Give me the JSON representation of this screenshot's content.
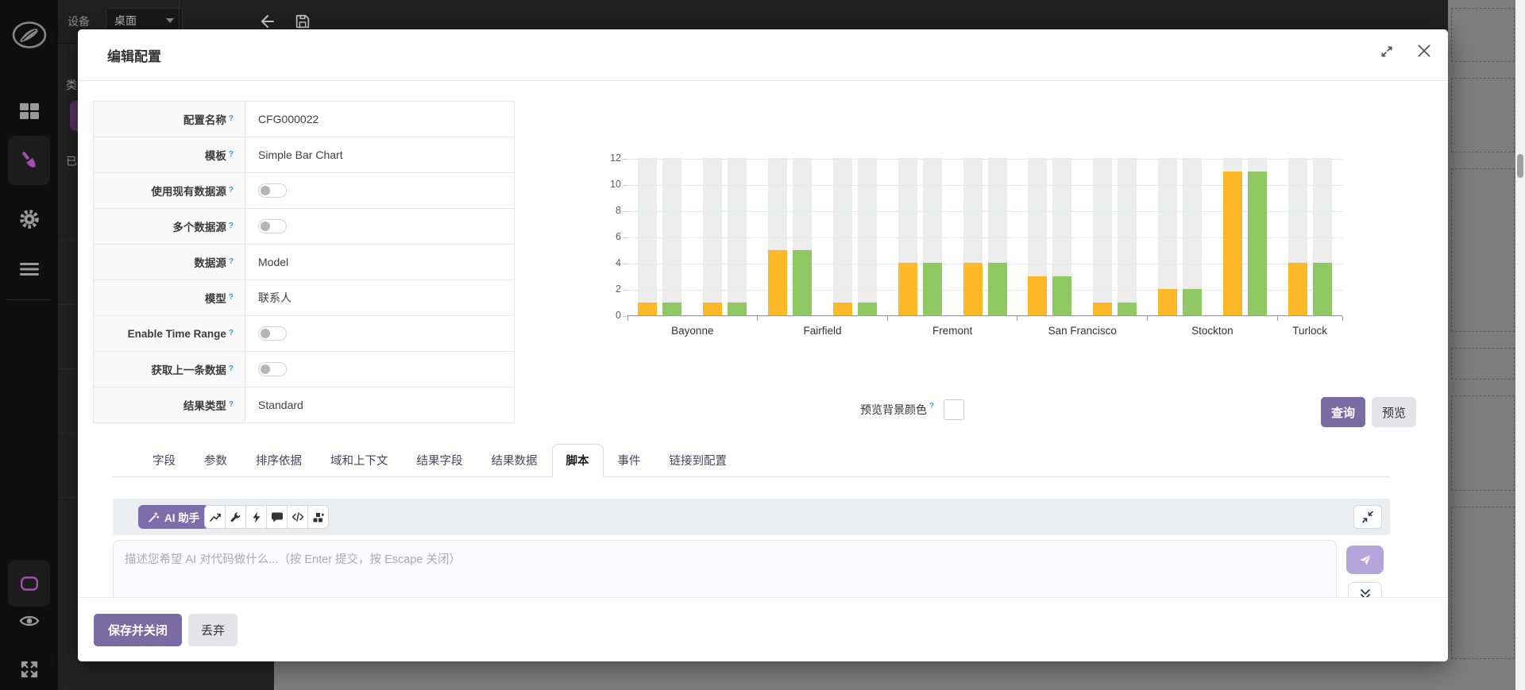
{
  "colors": {
    "accent_purple": "#7a6ba3",
    "ai_button_purple": "#7d6dab",
    "send_button_purple": "#b3a5d9",
    "help_marker_blue": "#2f9fd0",
    "chart_orange": "#fcb826",
    "chart_green": "#90c964",
    "chart_background_bar": "#ececec"
  },
  "app": {
    "toolbar": {
      "device_label": "设备",
      "device_value": "桌面"
    },
    "panel": {
      "text_top": "类",
      "text_bottom": "已"
    }
  },
  "modal": {
    "title": "编辑配置",
    "form": {
      "help_marker": "?",
      "rows": [
        {
          "label": "配置名称",
          "type": "text",
          "value": "CFG000022"
        },
        {
          "label": "模板",
          "type": "text",
          "value": "Simple Bar Chart"
        },
        {
          "label": "使用现有数据源",
          "type": "toggle",
          "value": "off"
        },
        {
          "label": "多个数据源",
          "type": "toggle",
          "value": "off"
        },
        {
          "label": "数据源",
          "type": "text",
          "value": "Model"
        },
        {
          "label": "模型",
          "type": "text",
          "value": "联系人"
        },
        {
          "label": "Enable Time Range",
          "type": "toggle",
          "value": "off"
        },
        {
          "label": "获取上一条数据",
          "type": "toggle",
          "value": "off"
        },
        {
          "label": "结果类型",
          "type": "text",
          "value": "Standard"
        }
      ]
    },
    "preview": {
      "bg_color_label": "预览背景颜色",
      "query_button": "查询",
      "preview_button": "预览"
    },
    "tabs": [
      "字段",
      "参数",
      "排序依据",
      "域和上下文",
      "结果字段",
      "结果数据",
      "脚本",
      "事件",
      "链接到配置"
    ],
    "active_tab": "脚本",
    "ai": {
      "assistant_button": "AI 助手",
      "input_placeholder": "描述您希望 AI 对代码做什么...（按 Enter 提交，按 Escape 关闭）",
      "toolbar_icons": [
        "chart-icon",
        "wrench-icon",
        "lightning-icon",
        "comment-icon",
        "code-icon",
        "blocks-icon"
      ]
    },
    "footer": {
      "save_close_button": "保存并关闭",
      "discard_button": "丢弃"
    }
  },
  "chart_data": {
    "type": "bar",
    "title": "",
    "xlabel": "",
    "ylabel": "",
    "categories": [
      "Bayonne",
      "Fairfield",
      "Fremont",
      "San Francisco",
      "Stockton",
      "Turlock"
    ],
    "groups": [
      {
        "category": "Bayonne",
        "pairs": [
          [
            1,
            1
          ],
          [
            1,
            1
          ]
        ]
      },
      {
        "category": "Fairfield",
        "pairs": [
          [
            5,
            5
          ],
          [
            1,
            1
          ]
        ]
      },
      {
        "category": "Fremont",
        "pairs": [
          [
            4,
            4
          ],
          [
            4,
            4
          ]
        ]
      },
      {
        "category": "San Francisco",
        "pairs": [
          [
            3,
            3
          ],
          [
            1,
            1
          ]
        ]
      },
      {
        "category": "Stockton",
        "pairs": [
          [
            2,
            2
          ],
          [
            11,
            11
          ]
        ]
      },
      {
        "category": "Turlock",
        "pairs": [
          [
            4,
            4
          ]
        ]
      }
    ],
    "series": [
      {
        "name": "series-orange",
        "color": "#fcb826"
      },
      {
        "name": "series-green",
        "color": "#90c964"
      }
    ],
    "ylim": [
      0,
      12
    ],
    "yticks": [
      0,
      2,
      4,
      6,
      8,
      10,
      12
    ],
    "grid": true,
    "legend": false,
    "background_max_bars": true
  }
}
